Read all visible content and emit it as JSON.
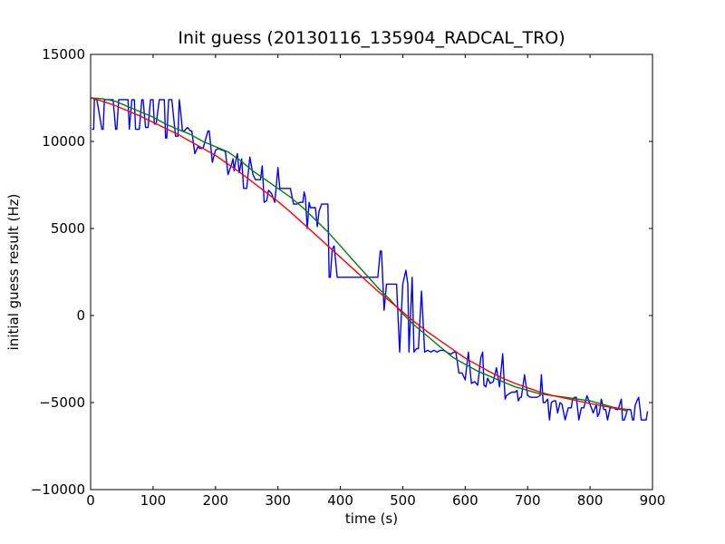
{
  "chart_data": {
    "type": "line",
    "title": "Init guess (20130116_135904_RADCAL_TRO)",
    "xlabel": "time (s)",
    "ylabel": "initial guess result (Hz)",
    "xlim": [
      0,
      900
    ],
    "ylim": [
      -10000,
      15000
    ],
    "x_ticks": [
      0,
      100,
      200,
      300,
      400,
      500,
      600,
      700,
      800,
      900
    ],
    "y_ticks": [
      -10000,
      -5000,
      0,
      5000,
      10000,
      15000
    ],
    "x_tick_labels": [
      "0",
      "100",
      "200",
      "300",
      "400",
      "500",
      "600",
      "700",
      "800",
      "900"
    ],
    "y_tick_labels": [
      "−10000",
      "−5000",
      "0",
      "5000",
      "10000",
      "15000"
    ],
    "grid": false,
    "legend": "none",
    "series": [
      {
        "color": "#0000ff",
        "x": [
          2,
          5,
          6,
          10,
          18,
          20,
          22,
          25,
          30,
          36,
          40,
          42,
          45,
          50,
          60,
          62,
          66,
          70,
          72,
          78,
          82,
          84,
          88,
          92,
          96,
          100,
          102,
          105,
          110,
          115,
          118,
          120,
          122,
          125,
          130,
          136,
          140,
          142,
          144,
          147,
          150,
          155,
          160,
          162,
          167,
          172,
          175,
          180,
          188,
          190,
          195,
          200,
          205,
          210,
          212,
          216,
          220,
          225,
          228,
          230,
          232,
          235,
          238,
          242,
          245,
          250,
          255,
          260,
          264,
          268,
          272,
          275,
          278,
          282,
          285,
          290,
          295,
          300,
          303,
          306,
          310,
          315,
          320,
          325,
          330,
          335,
          340,
          342,
          344,
          347,
          350,
          352,
          355,
          360,
          363,
          366,
          370,
          375,
          380,
          382,
          384,
          387,
          390,
          395,
          400,
          410,
          420,
          430,
          440,
          450,
          460,
          464,
          466,
          470,
          474,
          478,
          480,
          482,
          485,
          490,
          495,
          500,
          505,
          508,
          510,
          515,
          518,
          522,
          525,
          530,
          535,
          540,
          545,
          550,
          555,
          560,
          565,
          570,
          575,
          578,
          582,
          585,
          590,
          595,
          600,
          605,
          610,
          615,
          620,
          625,
          628,
          630,
          633,
          636,
          640,
          645,
          650,
          655,
          660,
          664,
          666,
          670,
          675,
          680,
          683,
          685,
          688,
          690,
          695,
          700,
          705,
          710,
          715,
          720,
          722,
          725,
          728,
          732,
          735,
          738,
          742,
          745,
          748,
          752,
          755,
          760,
          765,
          770,
          772,
          775,
          778,
          782,
          786,
          790,
          795,
          800,
          805,
          810,
          812,
          815,
          818,
          822,
          825,
          828,
          832,
          835,
          838,
          842,
          845,
          850,
          852,
          855,
          860,
          862,
          865,
          868,
          870,
          872,
          875,
          878,
          882,
          886,
          890,
          892
        ],
        "y": [
          10700,
          10700,
          12400,
          12400,
          10700,
          10700,
          12400,
          12400,
          12400,
          12400,
          10700,
          10700,
          12400,
          12400,
          12400,
          10700,
          12400,
          12400,
          10700,
          10700,
          12400,
          12400,
          10800,
          10800,
          12400,
          12400,
          11000,
          11000,
          12400,
          12400,
          12400,
          10200,
          10200,
          12400,
          12400,
          10300,
          10300,
          12400,
          11800,
          10600,
          10600,
          10800,
          10600,
          10600,
          9300,
          9700,
          9600,
          9600,
          10600,
          10600,
          8800,
          9500,
          9600,
          9500,
          9500,
          9400,
          8100,
          8600,
          9000,
          8300,
          8800,
          9300,
          8200,
          9000,
          7300,
          7300,
          9100,
          8100,
          7800,
          7800,
          7800,
          8600,
          6500,
          6600,
          7200,
          7000,
          6500,
          8500,
          7300,
          7300,
          7300,
          7300,
          7300,
          6400,
          6400,
          6500,
          6500,
          7100,
          6800,
          5000,
          6500,
          6200,
          6200,
          6200,
          5100,
          6000,
          6400,
          6400,
          6400,
          2200,
          2200,
          3800,
          4000,
          2200,
          2200,
          2200,
          2200,
          2200,
          2200,
          2200,
          2200,
          3700,
          3700,
          300,
          1800,
          1800,
          1800,
          1800,
          1800,
          1800,
          -2100,
          1800,
          2600,
          1800,
          -2100,
          2200,
          -2100,
          -1900,
          -1900,
          1400,
          -2100,
          -2000,
          -2100,
          -2000,
          -2100,
          -2000,
          -2000,
          -2100,
          -2200,
          -2200,
          -2100,
          -2100,
          -3300,
          -3300,
          -3700,
          -2100,
          -3900,
          -3800,
          -4000,
          -2400,
          -2100,
          -4000,
          -4100,
          -3600,
          -3900,
          -3800,
          -3000,
          -4100,
          -2200,
          -4800,
          -4600,
          -4500,
          -4400,
          -4400,
          -4300,
          -4900,
          -4700,
          -4700,
          -3400,
          -4600,
          -4700,
          -4700,
          -4700,
          -4600,
          -3400,
          -5000,
          -5000,
          -4800,
          -6000,
          -5000,
          -4900,
          -4900,
          -5600,
          -5000,
          -5100,
          -6000,
          -5300,
          -5300,
          -4800,
          -4700,
          -4700,
          -6000,
          -5300,
          -5300,
          -4600,
          -5100,
          -5600,
          -5100,
          -5800,
          -5600,
          -4800,
          -5400,
          -5400,
          -6000,
          -5300,
          -5300,
          -5300,
          -5400,
          -5400,
          -4800,
          -6000,
          -6000,
          -5400,
          -5400,
          -5400,
          -6000,
          -6000,
          -5200,
          -4900,
          -4700,
          -6000,
          -6000,
          -6000,
          -5500
        ]
      },
      {
        "color": "#008000",
        "x": [
          0,
          20,
          40,
          60,
          80,
          100,
          120,
          140,
          160,
          180,
          200,
          220,
          240,
          260,
          280,
          300,
          320,
          340,
          360,
          380,
          400,
          420,
          440,
          460,
          480,
          500,
          520,
          540,
          560,
          580,
          600,
          620,
          640,
          660,
          680,
          700,
          720,
          740,
          760,
          780,
          800,
          820,
          840,
          860
        ],
        "y": [
          12500,
          12450,
          12300,
          12000,
          11700,
          11400,
          11000,
          10700,
          10400,
          10000,
          9700,
          9400,
          8900,
          8300,
          7800,
          7300,
          6800,
          6200,
          5500,
          4800,
          4000,
          3200,
          2400,
          1600,
          900,
          100,
          -600,
          -1200,
          -1800,
          -2400,
          -2800,
          -3200,
          -3500,
          -3800,
          -4100,
          -4300,
          -4500,
          -4600,
          -4700,
          -4800,
          -4900,
          -5100,
          -5300,
          -5500
        ]
      },
      {
        "color": "#ff0000",
        "x": [
          0,
          20,
          40,
          60,
          80,
          100,
          120,
          140,
          160,
          180,
          200,
          220,
          240,
          260,
          280,
          300,
          320,
          340,
          360,
          380,
          400,
          420,
          440,
          460,
          480,
          500,
          520,
          540,
          560,
          580,
          600,
          620,
          640,
          660,
          680,
          700,
          720,
          740,
          760,
          780,
          800,
          820,
          840,
          860
        ],
        "y": [
          12500,
          12300,
          12050,
          11750,
          11450,
          11100,
          10750,
          10400,
          10000,
          9600,
          9200,
          8700,
          8200,
          7650,
          7100,
          6550,
          5950,
          5300,
          4650,
          4000,
          3350,
          2700,
          2050,
          1400,
          800,
          200,
          -400,
          -950,
          -1450,
          -1950,
          -2450,
          -2850,
          -3250,
          -3600,
          -3900,
          -4150,
          -4400,
          -4600,
          -4750,
          -4900,
          -5050,
          -5200,
          -5300,
          -5400
        ]
      }
    ]
  }
}
